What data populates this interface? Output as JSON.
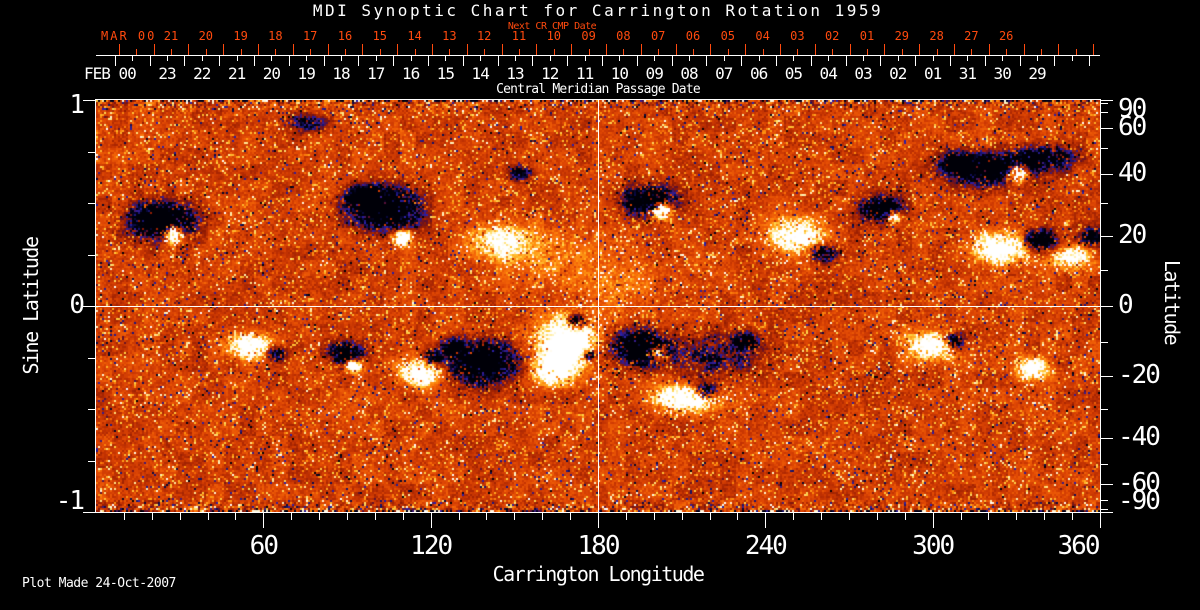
{
  "footer": "Plot Made 24-Oct-2007",
  "colors": {
    "background": "#000000",
    "foreground": "#ffffff",
    "accent_orange": "#ff4a0e"
  },
  "chart_data": {
    "type": "heatmap",
    "title": "MDI Synoptic Chart for Carrington Rotation 1959",
    "xlabel": "Carrington Longitude",
    "ylabel_left": "Sine Latitude",
    "ylabel_right": "Latitude",
    "x_range": [
      0,
      360
    ],
    "x_major_ticks": [
      60,
      120,
      180,
      240,
      300,
      360
    ],
    "x_minor_step": 10,
    "sine_latitude_range": [
      -1,
      1
    ],
    "sine_latitude_labeled_ticks": [
      1,
      0,
      -1
    ],
    "sine_latitude_minor_ticks": [
      0.75,
      0.5,
      0.25,
      -0.25,
      -0.5,
      -0.75
    ],
    "latitude_labeled_ticks": [
      90,
      60,
      40,
      20,
      0,
      -20,
      -40,
      -60,
      -90
    ],
    "latitude_minor_ticks": [
      80,
      70,
      50,
      30,
      10,
      -10,
      -30,
      -50,
      -70,
      -80
    ],
    "grid_lines": {
      "longitude": 180,
      "latitude": 0
    },
    "top_axis": {
      "label": "Central Meridian Passage Date",
      "next_cr_label": "Next CR CMP Date",
      "current_month": "FEB 00",
      "current_days": [
        "23",
        "22",
        "21",
        "20",
        "19",
        "18",
        "17",
        "16",
        "15",
        "14",
        "13",
        "12",
        "11",
        "10",
        "09",
        "08",
        "07",
        "06",
        "05",
        "04",
        "03",
        "02",
        "01",
        "31",
        "30",
        "29"
      ],
      "next_month": "MAR 00",
      "next_days": [
        "21",
        "20",
        "19",
        "18",
        "17",
        "16",
        "15",
        "14",
        "13",
        "12",
        "11",
        "10",
        "09",
        "08",
        "07",
        "06",
        "05",
        "04",
        "03",
        "02",
        "01",
        "29",
        "28",
        "27",
        "26"
      ]
    },
    "colormap": {
      "description": "magnetic field: negative polarity dark blue/black, quiet sun red-orange, positive polarity yellow/white",
      "stops": [
        [
          0.0,
          "#000008"
        ],
        [
          0.1,
          "#0a0a46"
        ],
        [
          0.16,
          "#2c20aa"
        ],
        [
          0.22,
          "#5c1030"
        ],
        [
          0.3,
          "#8f1a02"
        ],
        [
          0.42,
          "#c23202"
        ],
        [
          0.52,
          "#e04804"
        ],
        [
          0.64,
          "#f66a08"
        ],
        [
          0.74,
          "#ff9612"
        ],
        [
          0.83,
          "#ffd042"
        ],
        [
          0.91,
          "#fff0b0"
        ],
        [
          1.0,
          "#ffffff"
        ]
      ]
    },
    "active_regions_format": "[x_fraction, y_fraction_from_top, rx_px, ry_px, strength(-1 negative/dark .. +1 positive/bright)]",
    "active_regions": [
      [
        0.064,
        0.291,
        30,
        17,
        -0.9
      ],
      [
        0.076,
        0.323,
        9,
        9,
        1.0
      ],
      [
        0.208,
        0.053,
        18,
        8,
        -0.5
      ],
      [
        0.288,
        0.26,
        32,
        20,
        -0.85
      ],
      [
        0.263,
        0.231,
        14,
        10,
        -0.6
      ],
      [
        0.304,
        0.333,
        8,
        7,
        0.95
      ],
      [
        0.402,
        0.34,
        28,
        18,
        0.4
      ],
      [
        0.422,
        0.175,
        12,
        7,
        -0.5
      ],
      [
        0.55,
        0.243,
        24,
        14,
        -0.8
      ],
      [
        0.562,
        0.267,
        10,
        9,
        1.0
      ],
      [
        0.696,
        0.328,
        24,
        16,
        0.7
      ],
      [
        0.723,
        0.369,
        12,
        8,
        -0.6
      ],
      [
        0.781,
        0.262,
        20,
        12,
        -0.8
      ],
      [
        0.794,
        0.282,
        6,
        6,
        0.9
      ],
      [
        0.885,
        0.165,
        38,
        14,
        -0.8
      ],
      [
        0.857,
        0.146,
        15,
        9,
        -0.5
      ],
      [
        0.918,
        0.175,
        10,
        8,
        1.0
      ],
      [
        0.9,
        0.357,
        26,
        14,
        0.75
      ],
      [
        0.94,
        0.34,
        16,
        10,
        -0.7
      ],
      [
        0.153,
        0.595,
        20,
        12,
        0.7
      ],
      [
        0.178,
        0.612,
        10,
        7,
        -0.6
      ],
      [
        0.248,
        0.612,
        16,
        10,
        -0.7
      ],
      [
        0.255,
        0.643,
        8,
        6,
        0.8
      ],
      [
        0.321,
        0.66,
        18,
        12,
        0.8
      ],
      [
        0.335,
        0.624,
        10,
        7,
        -0.6
      ],
      [
        0.385,
        0.636,
        30,
        20,
        -0.85
      ],
      [
        0.354,
        0.595,
        12,
        9,
        -0.5
      ],
      [
        0.467,
        0.587,
        26,
        24,
        0.95
      ],
      [
        0.453,
        0.655,
        20,
        14,
        0.6
      ],
      [
        0.477,
        0.534,
        9,
        7,
        -0.8
      ],
      [
        0.49,
        0.617,
        6,
        5,
        -0.7
      ],
      [
        0.542,
        0.602,
        26,
        16,
        -0.85
      ],
      [
        0.557,
        0.612,
        9,
        7,
        0.8
      ],
      [
        0.587,
        0.721,
        30,
        12,
        0.8
      ],
      [
        0.607,
        0.704,
        11,
        8,
        -0.7
      ],
      [
        0.646,
        0.583,
        12,
        8,
        -0.6
      ],
      [
        0.831,
        0.595,
        22,
        13,
        0.8
      ],
      [
        0.853,
        0.583,
        11,
        8,
        -0.7
      ],
      [
        0.932,
        0.65,
        14,
        10,
        0.8
      ],
      [
        0.448,
        0.376,
        55,
        28,
        0.18
      ],
      [
        0.518,
        0.449,
        45,
        25,
        0.15
      ],
      [
        0.617,
        0.619,
        45,
        20,
        -0.3
      ],
      [
        0.94,
        0.14,
        30,
        12,
        -0.6
      ],
      [
        0.97,
        0.38,
        18,
        11,
        0.6
      ],
      [
        0.99,
        0.33,
        14,
        9,
        -0.5
      ]
    ]
  }
}
